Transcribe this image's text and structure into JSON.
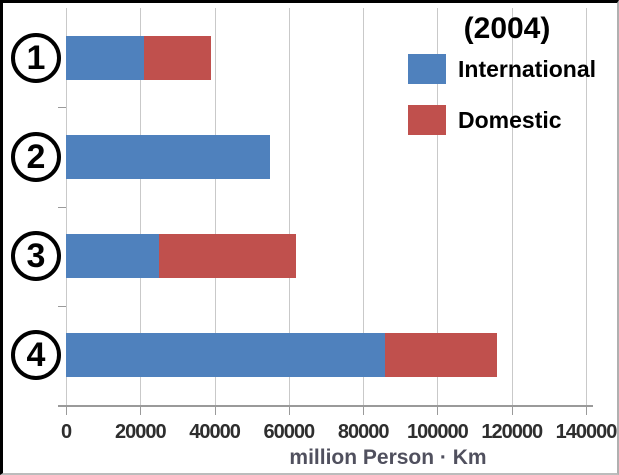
{
  "chart_data": {
    "type": "bar",
    "orientation": "horizontal",
    "stacked": true,
    "title": "(2004)",
    "categories": [
      "1",
      "2",
      "3",
      "4"
    ],
    "series": [
      {
        "name": "International",
        "color": "#4f81bd",
        "values": [
          21000,
          55000,
          25000,
          86000
        ]
      },
      {
        "name": "Domestic",
        "color": "#c0504d",
        "values": [
          18000,
          0,
          37000,
          30000
        ]
      }
    ],
    "totals": [
      39000,
      55000,
      62000,
      116000
    ],
    "xlabel": "million Person · Km",
    "xlim": [
      0,
      140000
    ],
    "xticks": [
      0,
      20000,
      40000,
      60000,
      80000,
      100000,
      120000,
      140000
    ],
    "grid": true,
    "legend_position": "top-right",
    "gridline_color": "#c9c9c9",
    "axis_color": "#9a9a9a"
  }
}
